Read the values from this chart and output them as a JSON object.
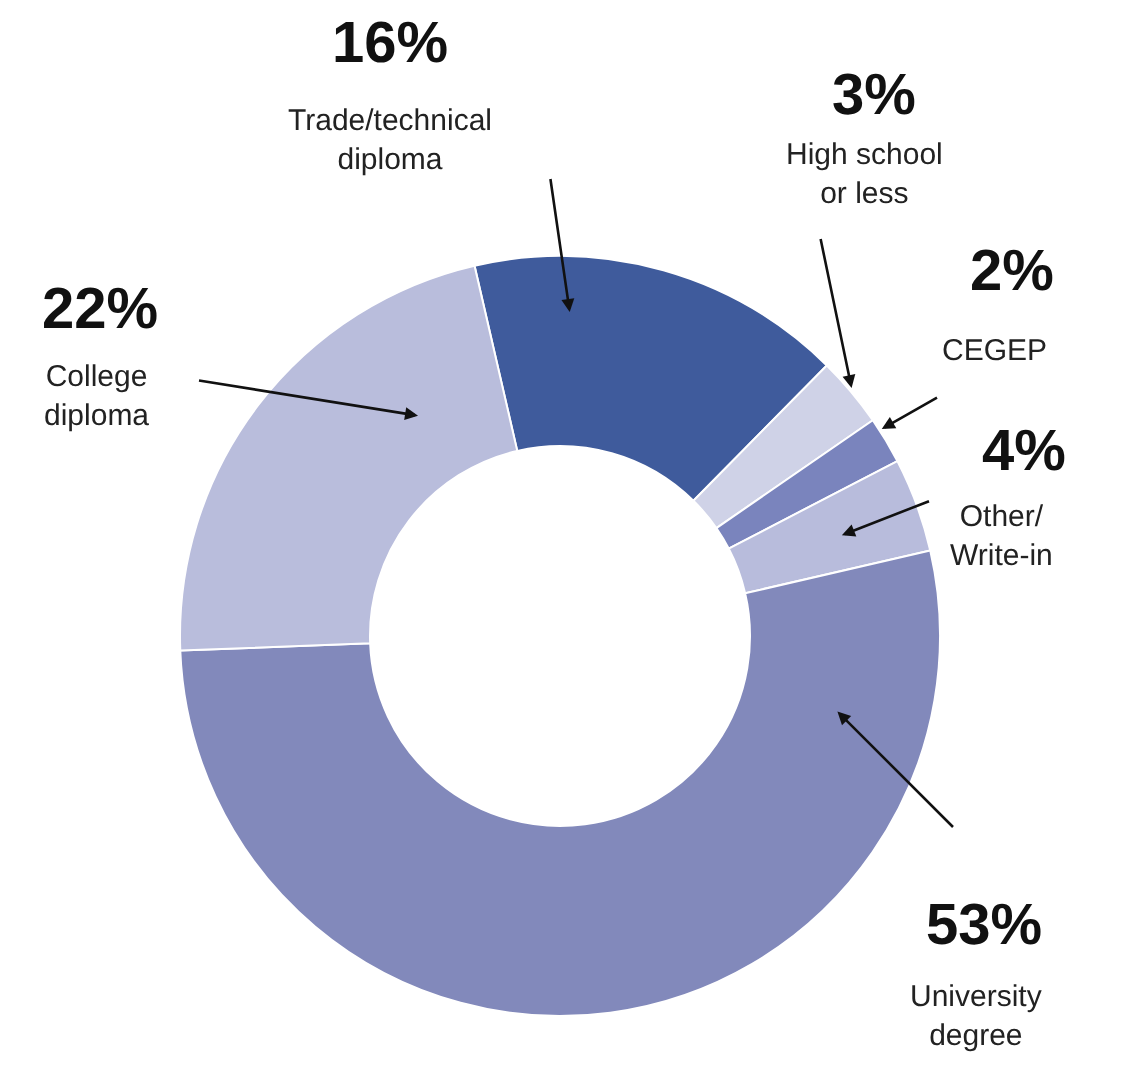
{
  "chart_data": {
    "type": "donut",
    "categories": [
      "Trade/technical\ndiploma",
      "High school\nor less",
      "CEGEP",
      "Other/\nWrite-in",
      "University\ndegree",
      "College\ndiploma"
    ],
    "values": [
      16,
      3,
      2,
      4,
      53,
      22
    ],
    "value_labels": [
      "16%",
      "3%",
      "2%",
      "4%",
      "53%",
      "22%"
    ],
    "colors": [
      "#3f5b9c",
      "#cfd2e7",
      "#7a84bd",
      "#b8bcdc",
      "#8289bb",
      "#b9bddc"
    ],
    "legend": false
  }
}
